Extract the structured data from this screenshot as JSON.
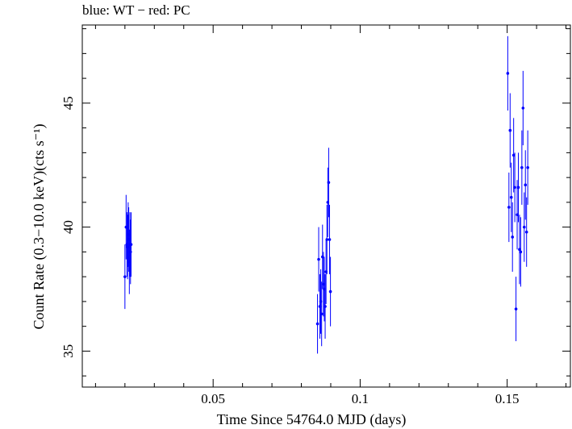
{
  "chart_data": {
    "type": "scatter",
    "title": "blue: WT − red: PC",
    "xlabel": "Time Since 54764.0 MJD (days)",
    "ylabel": "Count Rate (0.3−10.0 keV)(cts s⁻¹)",
    "xlim": [
      0.0055,
      0.1715
    ],
    "ylim": [
      33.55,
      48.15
    ],
    "xticks": [
      0.05,
      0.1,
      0.15
    ],
    "xtick_labels": [
      "0.05",
      "0.1",
      "0.15"
    ],
    "yticks": [
      35,
      40,
      45
    ],
    "ytick_labels": [
      "35",
      "40",
      "45"
    ],
    "grid": false,
    "series": [
      {
        "name": "WT",
        "color": "#0000ff",
        "x": [
          0.02,
          0.0204,
          0.0207,
          0.0209,
          0.0211,
          0.0213,
          0.0215,
          0.0217,
          0.0219,
          0.0221,
          0.0855,
          0.0859,
          0.0863,
          0.0866,
          0.0869,
          0.0872,
          0.0875,
          0.0878,
          0.0881,
          0.0884,
          0.0887,
          0.089,
          0.0893,
          0.0896,
          0.0899,
          0.1502,
          0.1506,
          0.151,
          0.1514,
          0.1518,
          0.1522,
          0.1526,
          0.153,
          0.1534,
          0.1538,
          0.1542,
          0.1546,
          0.155,
          0.1554,
          0.1558,
          0.1562,
          0.1566,
          0.157
        ],
        "y": [
          38.0,
          40.0,
          39.3,
          39.2,
          39.7,
          39.5,
          38.6,
          39.3,
          39.0,
          39.3,
          36.1,
          38.7,
          36.8,
          37.0,
          36.5,
          38.8,
          37.7,
          37.5,
          36.8,
          38.2,
          39.5,
          41.0,
          41.8,
          39.5,
          37.4,
          46.2,
          40.8,
          43.9,
          41.2,
          39.6,
          42.9,
          41.6,
          36.7,
          40.5,
          41.6,
          39.1,
          39.0,
          42.4,
          44.8,
          40.0,
          41.7,
          39.8,
          42.4
        ],
        "yerr": [
          1.3,
          1.3,
          1.3,
          1.3,
          1.3,
          1.3,
          1.3,
          1.3,
          1.3,
          1.3,
          1.2,
          1.3,
          1.3,
          1.3,
          1.3,
          1.3,
          1.3,
          1.3,
          1.3,
          1.3,
          1.4,
          1.4,
          1.4,
          1.4,
          1.4,
          1.5,
          1.4,
          1.5,
          1.4,
          1.4,
          1.5,
          1.4,
          1.3,
          1.4,
          1.4,
          1.4,
          1.4,
          1.5,
          1.5,
          1.4,
          1.4,
          1.4,
          1.5
        ],
        "xerr": 0.00012
      }
    ]
  }
}
